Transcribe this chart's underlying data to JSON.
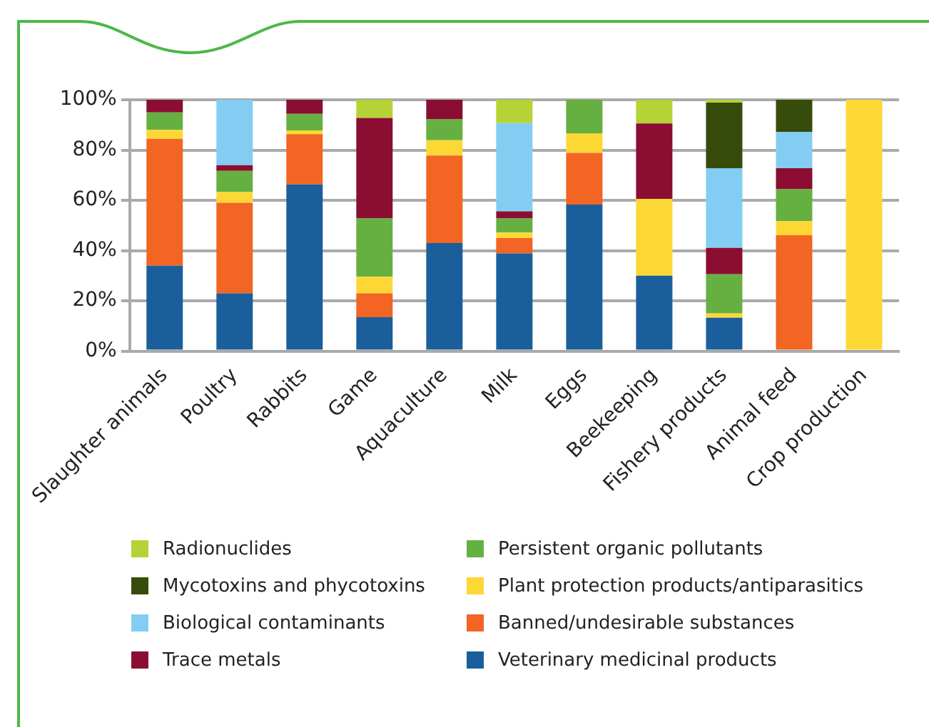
{
  "chart_data": {
    "type": "bar",
    "stacked": true,
    "categories": [
      "Slaughter animals",
      "Poultry",
      "Rabbits",
      "Game",
      "Aquaculture",
      "Milk",
      "Eggs",
      "Beekeeping",
      "Fishery products",
      "Animal feed",
      "Crop production"
    ],
    "ylim": [
      0,
      100
    ],
    "yticks": [
      {
        "value": 0,
        "label": "0%"
      },
      {
        "value": 20,
        "label": "20%"
      },
      {
        "value": 40,
        "label": "40%"
      },
      {
        "value": 60,
        "label": "60%"
      },
      {
        "value": 80,
        "label": "80%"
      },
      {
        "value": 100,
        "label": "100%"
      }
    ],
    "grid": "y",
    "legend": "bottom",
    "series": [
      {
        "name": "Veterinary medicinal products",
        "color": "#1a5f9c",
        "values": [
          34,
          23,
          66.3,
          13.5,
          43,
          38.9,
          58.3,
          30,
          13.3,
          null,
          null
        ]
      },
      {
        "name": "Banned/undesirable substances",
        "color": "#f26522",
        "values": [
          50.5,
          36,
          20,
          9.5,
          34.8,
          6.1,
          20.6,
          null,
          null,
          46.1,
          null
        ]
      },
      {
        "name": "Plant protection products/antiparasitics",
        "color": "#fdd835",
        "values": [
          3.5,
          4.3,
          1.5,
          6.6,
          6.1,
          2.2,
          7.8,
          30.6,
          1.7,
          5.6,
          100
        ]
      },
      {
        "name": "Persistent organic pollutants",
        "color": "#66b042",
        "values": [
          7,
          8.4,
          6.6,
          23.2,
          8.3,
          5.6,
          13.3,
          null,
          15.6,
          12.7,
          null
        ]
      },
      {
        "name": "Trace metals",
        "color": "#8b0d32",
        "values": [
          5,
          2.3,
          5.6,
          40,
          7.8,
          2.8,
          null,
          30,
          10.5,
          8.4,
          null
        ]
      },
      {
        "name": "Biological contaminants",
        "color": "#83cdf3",
        "values": [
          null,
          26,
          null,
          null,
          null,
          35.1,
          null,
          null,
          31.7,
          14.4,
          null
        ]
      },
      {
        "name": "Mycotoxins and phycotoxins",
        "color": "#374b0b",
        "values": [
          null,
          null,
          null,
          null,
          null,
          null,
          null,
          null,
          26.1,
          12.8,
          null
        ]
      },
      {
        "name": "Radionuclides",
        "color": "#b5d334",
        "values": [
          null,
          null,
          null,
          7.2,
          null,
          9.3,
          null,
          9.4,
          1.1,
          null,
          null
        ]
      }
    ]
  }
}
